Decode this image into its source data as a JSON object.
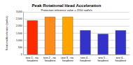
{
  "chart_data": {
    "type": "bar",
    "title": "Peak Rotational Head Acceleration",
    "subtitle": "Protection reference value = 2150 rad/s/s",
    "y_label": "Rotational Acceleration (rad/s/s)",
    "categories": [
      "test 1 - no headrest",
      "test 2 - no headrest",
      "test 3 - no headrest",
      "test 4 - headrest",
      "test 5 - headrest",
      "test 6 - headrest"
    ],
    "values": [
      2400,
      2650,
      2650,
      1700,
      1450,
      1700
    ],
    "colors": [
      "#ff2a00",
      "#ff8c1a",
      "#ffa500",
      "#3333cc",
      "#3333cc",
      "#3333cc"
    ],
    "ylim": [
      0,
      3000
    ],
    "yticks": [
      0,
      500,
      1000,
      1500,
      2000,
      2500,
      3000
    ],
    "grid": true
  }
}
